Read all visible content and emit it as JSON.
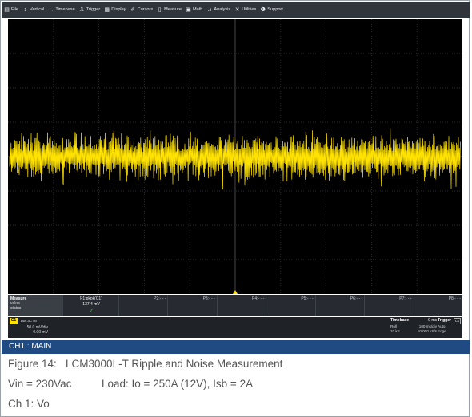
{
  "menu": [
    {
      "label": "File",
      "icon": "file-icon",
      "glyph": "▤"
    },
    {
      "label": "Vertical",
      "icon": "vertical-icon",
      "glyph": "↕"
    },
    {
      "label": "Timebase",
      "icon": "timebase-icon",
      "glyph": "↔"
    },
    {
      "label": "Trigger",
      "icon": "trigger-icon",
      "glyph": "⎍"
    },
    {
      "label": "Display",
      "icon": "display-icon",
      "glyph": "▦"
    },
    {
      "label": "Cursors",
      "icon": "cursors-icon",
      "glyph": "✐"
    },
    {
      "label": "Measure",
      "icon": "measure-icon",
      "glyph": "▯"
    },
    {
      "label": "Math",
      "icon": "math-icon",
      "glyph": "▣"
    },
    {
      "label": "Analysis",
      "icon": "analysis-icon",
      "glyph": "⩘"
    },
    {
      "label": "Utilities",
      "icon": "utilities-icon",
      "glyph": "✕"
    },
    {
      "label": "Support",
      "icon": "support-icon",
      "glyph": "❶"
    }
  ],
  "screen": {
    "channel_marker": "1",
    "trace_color": "#ffe200",
    "grid_color": "#3a3a3a"
  },
  "measure": {
    "header": {
      "title": "Measure",
      "row1": "value",
      "row2": "status"
    },
    "p1": {
      "label": "P1:pkpk(C1)",
      "value": "137.4 mV",
      "status": "✓"
    },
    "slots": [
      "P2:- - -",
      "P3:- - -",
      "P4:- - -",
      "P5:- - -",
      "P6:- - -",
      "P7:- - -",
      "P8:- - -"
    ]
  },
  "channel": {
    "tag": "C1",
    "settings": "BwL ACTM",
    "vdiv": "50.0 mV/div",
    "offset": "0.00 mV"
  },
  "timebase": {
    "title": "Timebase",
    "delay": "0 ms",
    "mode": "Roll",
    "tdiv": "100 ms/div",
    "samples": "10 kS",
    "rate": "10.000 kS/s"
  },
  "trigger": {
    "title": "Trigger",
    "badge": "C1",
    "mode": "Auto",
    "type": "Edge"
  },
  "main_bar": "CH1 : MAIN",
  "caption": {
    "line1": "Figure 14:   LCM3000L-T Ripple and Noise Measurement",
    "line2": "Vin = 230Vac          Load: Io = 250A (12V), Isb = 2A",
    "line3": "Ch 1: Vo"
  }
}
